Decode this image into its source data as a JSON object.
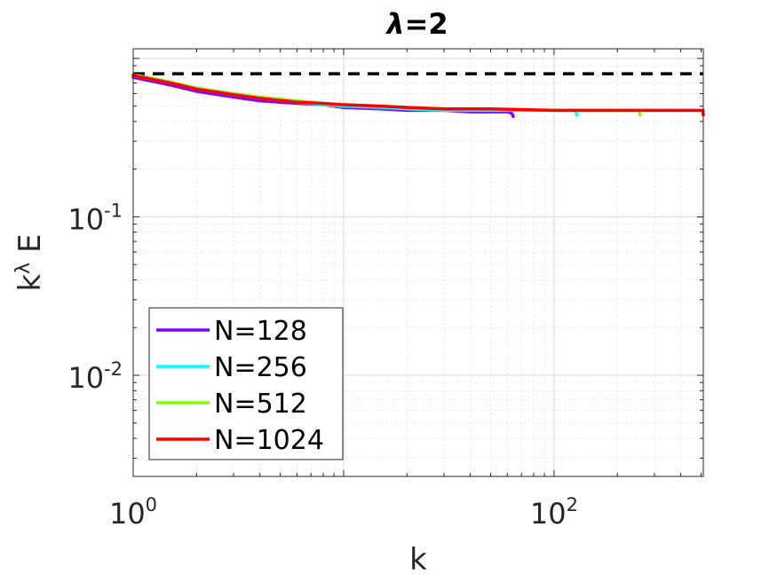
{
  "chart_data": {
    "type": "line",
    "title_symbol": "λ",
    "title_rest": "=2",
    "xlabel": "k",
    "ylabel_base": "k",
    "ylabel_sup": "λ",
    "ylabel_tail": " E",
    "xscale": "log",
    "yscale": "log",
    "xlim": [
      1,
      512
    ],
    "ylim": [
      0.0023,
      1.15
    ],
    "grid": true,
    "minor_grid": true,
    "legend_position": "lower-left",
    "x_ticks": [
      {
        "value": 1,
        "base": "10",
        "exp": "0"
      },
      {
        "value": 100,
        "base": "10",
        "exp": "2"
      }
    ],
    "y_ticks": [
      {
        "value": 0.01,
        "base": "10",
        "exp": "-2"
      },
      {
        "value": 0.1,
        "base": "10",
        "exp": "-1"
      }
    ],
    "reference_line": {
      "y": 0.8,
      "style": "dashed",
      "color": "#000000"
    },
    "series": [
      {
        "name": "N=128",
        "color": "#8000ff",
        "kmax": 64,
        "x": [
          1,
          1.5,
          2,
          3,
          4,
          6,
          8,
          10,
          15,
          20,
          30,
          40,
          50,
          60,
          63,
          64
        ],
        "y": [
          0.76,
          0.68,
          0.62,
          0.57,
          0.54,
          0.52,
          0.51,
          0.49,
          0.48,
          0.47,
          0.47,
          0.46,
          0.46,
          0.46,
          0.45,
          0.43
        ]
      },
      {
        "name": "N=256",
        "color": "#00ffff",
        "kmax": 128,
        "x": [
          1,
          1.5,
          2,
          3,
          4,
          6,
          8,
          10,
          15,
          20,
          30,
          50,
          80,
          100,
          120,
          127,
          128
        ],
        "y": [
          0.78,
          0.7,
          0.64,
          0.59,
          0.56,
          0.53,
          0.51,
          0.5,
          0.49,
          0.48,
          0.47,
          0.47,
          0.47,
          0.47,
          0.47,
          0.47,
          0.44
        ]
      },
      {
        "name": "N=512",
        "color": "#80ff00",
        "kmax": 256,
        "x": [
          1,
          1.5,
          2,
          3,
          4,
          6,
          8,
          10,
          15,
          20,
          30,
          50,
          100,
          150,
          200,
          254,
          256
        ],
        "y": [
          0.79,
          0.71,
          0.65,
          0.6,
          0.57,
          0.54,
          0.52,
          0.51,
          0.5,
          0.49,
          0.48,
          0.48,
          0.47,
          0.47,
          0.47,
          0.47,
          0.44
        ]
      },
      {
        "name": "N=1024",
        "color": "#ff0000",
        "kmax": 512,
        "x": [
          1,
          1.5,
          2,
          3,
          4,
          6,
          8,
          10,
          15,
          20,
          30,
          50,
          100,
          200,
          300,
          400,
          510,
          512
        ],
        "y": [
          0.78,
          0.7,
          0.64,
          0.59,
          0.56,
          0.53,
          0.52,
          0.51,
          0.5,
          0.49,
          0.48,
          0.48,
          0.47,
          0.47,
          0.47,
          0.47,
          0.47,
          0.44
        ]
      }
    ]
  }
}
